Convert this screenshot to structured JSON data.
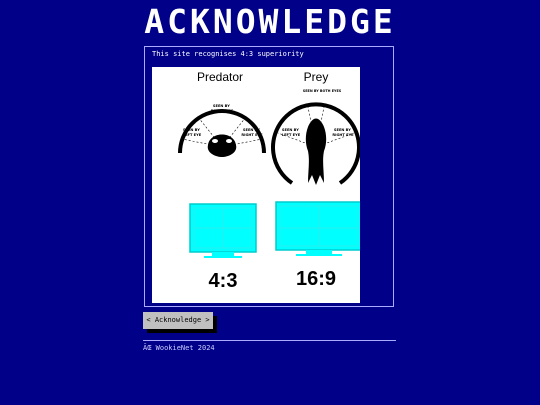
{
  "page": {
    "title": "ACKNOWLEDGE"
  },
  "panel": {
    "caption": "This site recognises 4:3 superiority",
    "figure": {
      "left_heading": "Predator",
      "right_heading": "Prey",
      "predator_labels": {
        "both": [
          "SEEN BY",
          "BOTH EYES"
        ],
        "left": [
          "SEEN BY",
          "LEFT EYE"
        ],
        "right": [
          "SEEN BY",
          "RIGHT EYE"
        ]
      },
      "prey_labels": {
        "both": "SEEN BY BOTH EYES",
        "left": [
          "SEEN BY",
          "LEFT EYE"
        ],
        "right": [
          "SEEN BY",
          "RIGHT EYE"
        ]
      },
      "left_ratio": "4:3",
      "right_ratio": "16:9",
      "colors": {
        "monitor": "#00ffff",
        "ink": "#000000"
      }
    }
  },
  "actions": {
    "acknowledge_label": "< Acknowledge >"
  },
  "footer": {
    "copyright": "ÃŒ WookieNet 2024"
  }
}
